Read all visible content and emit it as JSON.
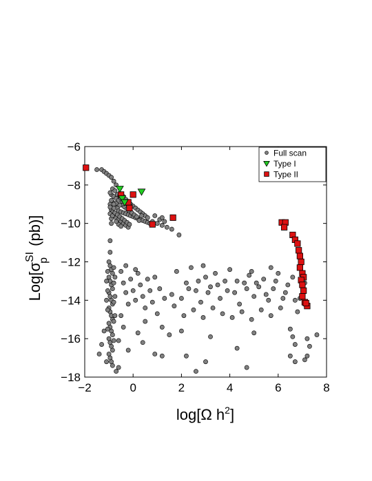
{
  "chart_data": {
    "type": "scatter",
    "xlabel": "log[Ω h²]",
    "ylabel": "Log[σ_p^SI (pb)]",
    "xlim": [
      -2,
      8
    ],
    "ylim": [
      -18,
      -6
    ],
    "xticks": [
      -2,
      0,
      2,
      4,
      6,
      8
    ],
    "yticks": [
      -6,
      -8,
      -10,
      -12,
      -14,
      -16,
      -18
    ],
    "xtick_labels": [
      "−2",
      "0",
      "2",
      "4",
      "6",
      "8"
    ],
    "ytick_labels": [
      "−6",
      "−8",
      "−10",
      "−12",
      "−14",
      "−16",
      "−18"
    ],
    "legend_position": "top-right",
    "series": [
      {
        "name": "Full scan",
        "marker": "circle",
        "color": "#808080",
        "edge": "#000000",
        "points": [
          [
            -1.5,
            -7.2
          ],
          [
            -1.3,
            -7.2
          ],
          [
            -1.2,
            -7.3
          ],
          [
            -1.1,
            -7.4
          ],
          [
            -1.0,
            -7.5
          ],
          [
            -0.9,
            -7.6
          ],
          [
            -0.8,
            -7.8
          ],
          [
            -0.7,
            -8.0
          ],
          [
            -0.9,
            -8.5
          ],
          [
            -0.8,
            -8.6
          ],
          [
            -0.7,
            -8.7
          ],
          [
            -0.85,
            -8.9
          ],
          [
            -0.95,
            -9.0
          ],
          [
            -0.75,
            -9.1
          ],
          [
            -0.65,
            -9.2
          ],
          [
            -0.9,
            -9.3
          ],
          [
            -0.6,
            -9.35
          ],
          [
            -0.5,
            -9.4
          ],
          [
            -0.4,
            -9.45
          ],
          [
            -0.3,
            -9.5
          ],
          [
            -0.2,
            -9.55
          ],
          [
            -0.1,
            -9.6
          ],
          [
            0.0,
            -9.65
          ],
          [
            0.1,
            -9.7
          ],
          [
            0.2,
            -9.75
          ],
          [
            0.3,
            -9.8
          ],
          [
            0.4,
            -9.85
          ],
          [
            0.5,
            -9.9
          ],
          [
            0.6,
            -9.95
          ],
          [
            0.7,
            -10.0
          ],
          [
            -0.8,
            -9.6
          ],
          [
            -0.7,
            -9.7
          ],
          [
            -0.6,
            -9.8
          ],
          [
            -0.5,
            -9.9
          ],
          [
            -0.4,
            -10.0
          ],
          [
            -0.3,
            -10.1
          ],
          [
            -0.2,
            -10.2
          ],
          [
            -0.9,
            -9.75
          ],
          [
            -0.85,
            -9.4
          ],
          [
            -0.95,
            -9.5
          ],
          [
            -0.8,
            -9.2
          ],
          [
            -0.7,
            -8.95
          ],
          [
            -0.6,
            -8.8
          ],
          [
            -0.5,
            -8.7
          ],
          [
            -0.4,
            -8.6
          ],
          [
            -0.3,
            -8.75
          ],
          [
            -0.2,
            -8.9
          ],
          [
            -0.1,
            -9.0
          ],
          [
            0.0,
            -9.1
          ],
          [
            0.1,
            -9.2
          ],
          [
            0.2,
            -9.3
          ],
          [
            0.3,
            -9.4
          ],
          [
            0.4,
            -9.5
          ],
          [
            0.5,
            -9.6
          ],
          [
            0.6,
            -9.7
          ],
          [
            0.8,
            -9.9
          ],
          [
            1.0,
            -10.0
          ],
          [
            1.2,
            -10.1
          ],
          [
            1.4,
            -10.2
          ],
          [
            1.6,
            -10.3
          ],
          [
            1.9,
            -10.6
          ],
          [
            1.1,
            -9.8
          ],
          [
            1.3,
            -9.9
          ],
          [
            -0.95,
            -8.4
          ],
          [
            -0.85,
            -8.2
          ],
          [
            -0.75,
            -8.3
          ],
          [
            -0.65,
            -8.5
          ],
          [
            -0.55,
            -8.55
          ],
          [
            -0.45,
            -9.05
          ],
          [
            -0.35,
            -9.15
          ],
          [
            -0.25,
            -9.25
          ],
          [
            -0.15,
            -9.35
          ],
          [
            -0.05,
            -9.45
          ],
          [
            0.05,
            -9.55
          ],
          [
            0.15,
            -9.65
          ],
          [
            0.25,
            -9.85
          ],
          [
            -0.6,
            -10.05
          ],
          [
            -0.5,
            -10.15
          ],
          [
            -0.7,
            -9.9
          ],
          [
            -0.9,
            -10.0
          ],
          [
            -0.8,
            -9.0
          ],
          [
            -0.9,
            -8.8
          ],
          [
            -0.95,
            -9.15
          ],
          [
            -0.85,
            -9.6
          ],
          [
            -0.75,
            -9.45
          ],
          [
            -0.65,
            -9.55
          ],
          [
            -0.55,
            -9.65
          ],
          [
            -0.45,
            -9.75
          ],
          [
            -0.35,
            -9.85
          ],
          [
            -0.25,
            -9.95
          ],
          [
            -0.15,
            -10.05
          ],
          [
            0.9,
            -9.6
          ],
          [
            1.2,
            -9.7
          ],
          [
            0.35,
            -9.6
          ],
          [
            -0.55,
            -9.05
          ],
          [
            -0.45,
            -8.85
          ],
          [
            -0.95,
            -10.9
          ],
          [
            -0.95,
            -11.5
          ],
          [
            -1.0,
            -12.0
          ],
          [
            -0.95,
            -12.2
          ],
          [
            -0.9,
            -12.4
          ],
          [
            -0.85,
            -12.6
          ],
          [
            -1.0,
            -12.8
          ],
          [
            -0.95,
            -13.0
          ],
          [
            -0.9,
            -13.2
          ],
          [
            -0.85,
            -13.4
          ],
          [
            -1.0,
            -13.6
          ],
          [
            -0.95,
            -13.8
          ],
          [
            -0.9,
            -14.0
          ],
          [
            -0.85,
            -14.2
          ],
          [
            -1.0,
            -14.4
          ],
          [
            -0.95,
            -14.6
          ],
          [
            -0.9,
            -14.8
          ],
          [
            -0.85,
            -15.0
          ],
          [
            -1.0,
            -15.2
          ],
          [
            -0.95,
            -15.4
          ],
          [
            -0.9,
            -15.6
          ],
          [
            -0.85,
            -15.8
          ],
          [
            -1.0,
            -16.0
          ],
          [
            -0.95,
            -16.2
          ],
          [
            -0.9,
            -16.4
          ],
          [
            -0.85,
            -16.6
          ],
          [
            -1.0,
            -16.8
          ],
          [
            -0.95,
            -17.0
          ],
          [
            -0.9,
            -17.2
          ],
          [
            -0.85,
            -17.4
          ],
          [
            -1.05,
            -12.5
          ],
          [
            -1.05,
            -13.5
          ],
          [
            -1.05,
            -14.5
          ],
          [
            -1.05,
            -15.5
          ],
          [
            -0.8,
            -12.3
          ],
          [
            -0.8,
            -13.1
          ],
          [
            -0.8,
            -14.1
          ],
          [
            -0.8,
            -15.1
          ],
          [
            -0.8,
            -16.1
          ],
          [
            -0.75,
            -12.8
          ],
          [
            -0.75,
            -13.8
          ],
          [
            -0.75,
            -14.8
          ],
          [
            -1.2,
            -15.6
          ],
          [
            -1.3,
            -16.3
          ],
          [
            -1.1,
            -17.2
          ],
          [
            -0.7,
            -17.7
          ],
          [
            -0.6,
            -17.5
          ],
          [
            -1.4,
            -16.8
          ],
          [
            -1.1,
            -13.0
          ],
          [
            -1.1,
            -14.0
          ],
          [
            -0.5,
            -12.5
          ],
          [
            -0.4,
            -13.1
          ],
          [
            -0.3,
            -13.6
          ],
          [
            -0.2,
            -14.2
          ],
          [
            -0.1,
            -12.9
          ],
          [
            0.0,
            -13.5
          ],
          [
            0.1,
            -14.0
          ],
          [
            0.2,
            -12.6
          ],
          [
            0.3,
            -13.2
          ],
          [
            0.4,
            -13.8
          ],
          [
            0.5,
            -14.4
          ],
          [
            0.6,
            -12.9
          ],
          [
            0.7,
            -13.5
          ],
          [
            0.8,
            -14.1
          ],
          [
            -0.5,
            -14.8
          ],
          [
            -0.4,
            -15.4
          ],
          [
            -0.6,
            -16.1
          ],
          [
            -0.3,
            -12.2
          ],
          [
            0.1,
            -12.4
          ],
          [
            0.9,
            -12.8
          ],
          [
            1.1,
            -13.4
          ],
          [
            1.3,
            -13.9
          ],
          [
            1.0,
            -14.7
          ],
          [
            0.5,
            -15.1
          ],
          [
            0.2,
            -15.7
          ],
          [
            -0.2,
            -16.6
          ],
          [
            0.4,
            -16.2
          ],
          [
            1.2,
            -16.9
          ],
          [
            1.6,
            -13.7
          ],
          [
            1.8,
            -12.5
          ],
          [
            2.0,
            -13.9
          ],
          [
            2.2,
            -13.1
          ],
          [
            2.4,
            -12.3
          ],
          [
            2.6,
            -13.5
          ],
          [
            2.8,
            -14.1
          ],
          [
            3.0,
            -12.8
          ],
          [
            3.2,
            -13.3
          ],
          [
            3.4,
            -12.6
          ],
          [
            3.6,
            -13.9
          ],
          [
            3.8,
            -13.0
          ],
          [
            4.0,
            -12.4
          ],
          [
            4.2,
            -13.6
          ],
          [
            4.4,
            -14.2
          ],
          [
            4.6,
            -13.1
          ],
          [
            4.8,
            -12.7
          ],
          [
            5.0,
            -13.8
          ],
          [
            5.2,
            -13.3
          ],
          [
            5.4,
            -12.9
          ],
          [
            5.6,
            -14.0
          ],
          [
            5.8,
            -13.4
          ],
          [
            6.0,
            -12.6
          ],
          [
            6.2,
            -13.9
          ],
          [
            6.4,
            -13.2
          ],
          [
            6.6,
            -12.8
          ],
          [
            6.7,
            -14.0
          ],
          [
            2.1,
            -14.8
          ],
          [
            2.5,
            -14.5
          ],
          [
            2.9,
            -14.9
          ],
          [
            3.3,
            -14.4
          ],
          [
            3.7,
            -14.7
          ],
          [
            4.1,
            -14.9
          ],
          [
            4.5,
            -14.6
          ],
          [
            4.9,
            -15.0
          ],
          [
            5.3,
            -14.5
          ],
          [
            5.7,
            -14.8
          ],
          [
            6.1,
            -14.4
          ],
          [
            2.3,
            -13.4
          ],
          [
            2.7,
            -13.0
          ],
          [
            3.1,
            -13.6
          ],
          [
            3.5,
            -13.2
          ],
          [
            3.9,
            -13.5
          ],
          [
            4.3,
            -13.0
          ],
          [
            4.7,
            -13.4
          ],
          [
            5.1,
            -13.1
          ],
          [
            5.5,
            -13.7
          ],
          [
            5.9,
            -13.0
          ],
          [
            6.3,
            -13.6
          ],
          [
            1.7,
            -14.3
          ],
          [
            2.9,
            -12.2
          ],
          [
            4.9,
            -12.5
          ],
          [
            5.7,
            -12.3
          ],
          [
            1.2,
            -15.4
          ],
          [
            1.5,
            -15.8
          ],
          [
            0.9,
            -16.8
          ],
          [
            2.0,
            -15.6
          ],
          [
            3.2,
            -15.9
          ],
          [
            4.3,
            -16.5
          ],
          [
            5.0,
            -15.7
          ],
          [
            2.2,
            -16.9
          ],
          [
            3.0,
            -17.2
          ],
          [
            4.7,
            -17.5
          ],
          [
            2.6,
            -17.7
          ],
          [
            6.5,
            -15.5
          ],
          [
            6.7,
            -16.3
          ],
          [
            6.5,
            -16.9
          ],
          [
            6.7,
            -17.2
          ],
          [
            7.2,
            -16.0
          ],
          [
            7.3,
            -16.4
          ],
          [
            7.1,
            -17.1
          ],
          [
            7.2,
            -16.9
          ],
          [
            7.6,
            -15.8
          ],
          [
            6.6,
            -15.9
          ],
          [
            6.8,
            -14.6
          ],
          [
            6.9,
            -13.9
          ],
          [
            7.1,
            -13.1
          ],
          [
            7.0,
            -12.9
          ]
        ]
      },
      {
        "name": "Type I",
        "marker": "triangle-down",
        "color": "#22cc22",
        "edge": "#000000",
        "points": [
          [
            -0.55,
            -8.2
          ],
          [
            -0.45,
            -8.7
          ],
          [
            -0.35,
            -8.9
          ],
          [
            0.35,
            -8.35
          ]
        ]
      },
      {
        "name": "Type II",
        "marker": "square",
        "color": "#dd1111",
        "edge": "#000000",
        "points": [
          [
            -1.95,
            -7.1
          ],
          [
            -0.5,
            -8.5
          ],
          [
            -0.2,
            -8.9
          ],
          [
            -0.15,
            -9.2
          ],
          [
            0.0,
            -8.5
          ],
          [
            0.8,
            -10.05
          ],
          [
            1.65,
            -9.7
          ],
          [
            6.15,
            -9.95
          ],
          [
            6.3,
            -9.95
          ],
          [
            6.25,
            -10.2
          ],
          [
            6.6,
            -10.6
          ],
          [
            6.7,
            -10.85
          ],
          [
            6.8,
            -11.05
          ],
          [
            6.85,
            -11.4
          ],
          [
            6.9,
            -11.7
          ],
          [
            6.95,
            -12.0
          ],
          [
            6.9,
            -12.3
          ],
          [
            7.0,
            -12.6
          ],
          [
            7.05,
            -12.8
          ],
          [
            6.95,
            -12.95
          ],
          [
            7.0,
            -13.2
          ],
          [
            7.05,
            -13.5
          ],
          [
            7.0,
            -13.8
          ],
          [
            7.1,
            -14.1
          ],
          [
            7.2,
            -14.3
          ],
          [
            7.15,
            -14.15
          ]
        ]
      }
    ]
  }
}
